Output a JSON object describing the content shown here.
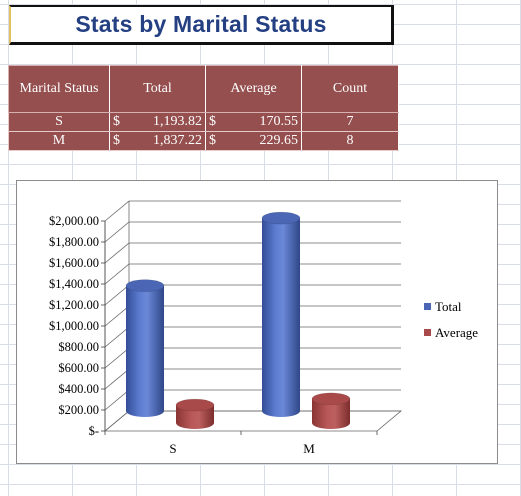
{
  "title": "Stats by Marital Status",
  "table": {
    "headers": [
      "Marital Status",
      "Total",
      "Average",
      "Count"
    ],
    "rows": [
      {
        "status": "S",
        "total": "1,193.82",
        "average": "170.55",
        "count": "7"
      },
      {
        "status": "M",
        "total": "1,837.22",
        "average": "229.65",
        "count": "8"
      }
    ],
    "currency_symbol": "$"
  },
  "colors": {
    "header_fill": "#954f4f",
    "title_text": "#243f82",
    "series_total": "#4a66b5",
    "series_average": "#a84a4a"
  },
  "chart_data": {
    "type": "bar",
    "style": "3d-cylinder",
    "categories": [
      "S",
      "M"
    ],
    "series": [
      {
        "name": "Total",
        "values": [
          1193.82,
          1837.22
        ],
        "color": "#4a66b5"
      },
      {
        "name": "Average",
        "values": [
          170.55,
          229.65
        ],
        "color": "#a84a4a"
      }
    ],
    "ylim": [
      0,
      2000
    ],
    "ytick_values": [
      0,
      200,
      400,
      600,
      800,
      1000,
      1200,
      1400,
      1600,
      1800,
      2000
    ],
    "ytick_labels": [
      "$-",
      "$200.00",
      "$400.00",
      "$600.00",
      "$800.00",
      "$1,000.00",
      "$1,200.00",
      "$1,400.00",
      "$1,600.00",
      "$1,800.00",
      "$2,000.00"
    ],
    "legend": [
      "Total",
      "Average"
    ],
    "legend_position": "right",
    "grid": true
  }
}
